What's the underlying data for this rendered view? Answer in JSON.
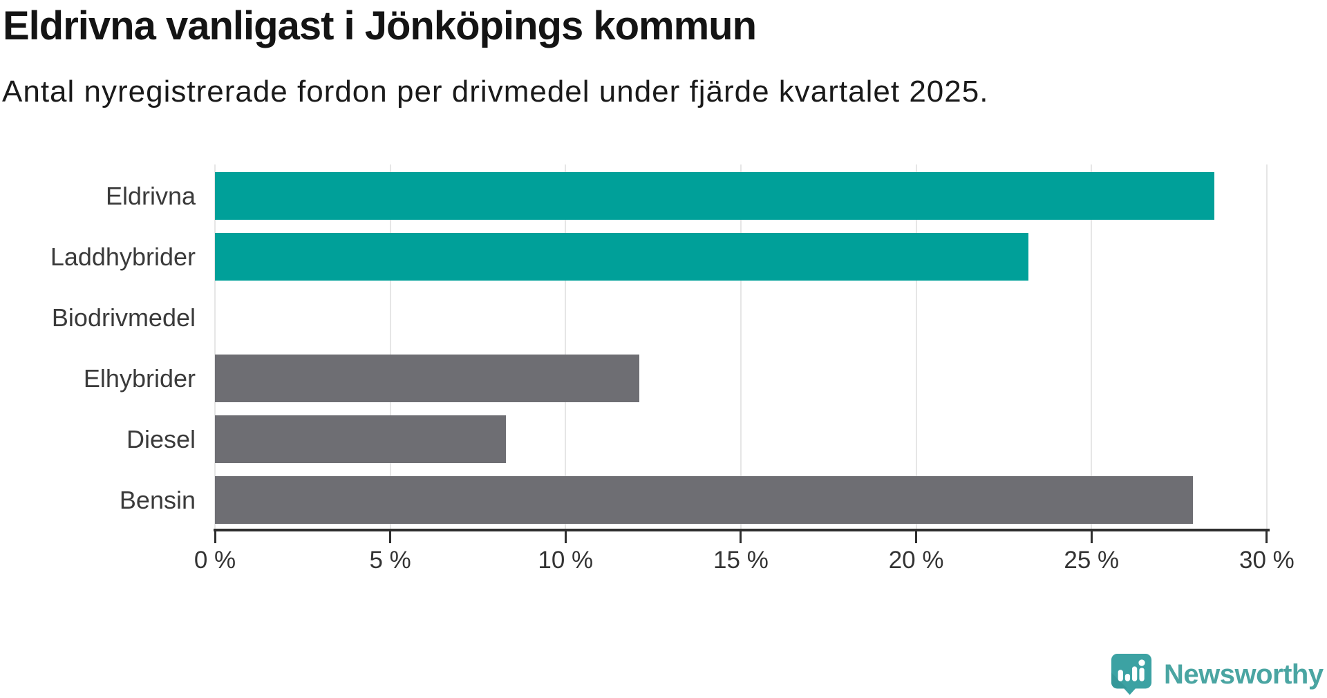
{
  "header": {
    "title": "Eldrivna vanligast i Jönköpings kommun",
    "subtitle": "Antal nyregistrerade fordon per drivmedel under fjärde kvartalet 2025."
  },
  "chart_data": {
    "type": "bar",
    "orientation": "horizontal",
    "title": "Eldrivna vanligast i Jönköpings kommun",
    "subtitle": "Antal nyregistrerade fordon per drivmedel under fjärde kvartalet 2025.",
    "categories": [
      "Eldrivna",
      "Laddhybrider",
      "Biodrivmedel",
      "Elhybrider",
      "Diesel",
      "Bensin"
    ],
    "values": [
      28.5,
      23.2,
      0,
      12.1,
      8.3,
      27.9
    ],
    "unit": "%",
    "bar_colors": [
      "#00a099",
      "#00a099",
      "#6e6e73",
      "#6e6e73",
      "#6e6e73",
      "#6e6e73"
    ],
    "accent_color": "#00a099",
    "neutral_color": "#6e6e73",
    "xlim": [
      0,
      30
    ],
    "x_ticks": [
      0,
      5,
      10,
      15,
      20,
      25,
      30
    ],
    "x_tick_labels": [
      "0 %",
      "5 %",
      "10 %",
      "15 %",
      "20 %",
      "25 %",
      "30 %"
    ],
    "grid": "vertical-only",
    "grid_color": "#e6e6e6",
    "axis_color": "#2e2e2e",
    "legend": "none"
  },
  "footer": {
    "brand": "Newsworthy",
    "brand_color": "#4aa5a2",
    "brand_icon": "newsworthy-speech-bubble-chart-icon"
  }
}
